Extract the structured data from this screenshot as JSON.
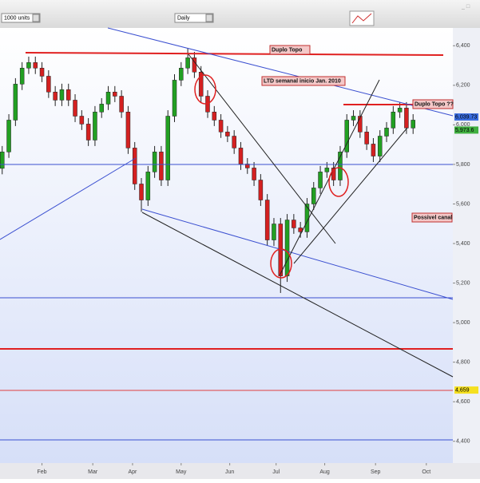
{
  "toolbar": {
    "units": "1000 units",
    "period": "Daily"
  },
  "chart_data": {
    "type": "candlestick",
    "x": [
      1,
      4,
      7,
      10,
      13,
      16,
      19,
      22,
      25,
      28,
      31,
      34,
      37,
      40,
      43,
      46,
      49,
      52,
      55,
      58,
      61,
      64,
      67,
      70,
      73,
      76,
      79,
      82,
      85,
      88,
      91,
      94,
      97,
      100,
      103,
      106,
      109,
      112,
      115,
      118,
      121,
      124,
      127,
      130,
      133,
      136,
      139,
      142,
      145,
      148,
      151,
      154,
      157,
      160,
      163,
      166,
      169,
      172,
      175,
      178,
      181,
      184,
      187
    ],
    "open": [
      5780,
      5863,
      6024,
      6206,
      6287,
      6315,
      6287,
      6246,
      6166,
      6125,
      6178,
      6125,
      6044,
      6004,
      5923,
      6065,
      6105,
      6166,
      6145,
      6065,
      5883,
      5701,
      5620,
      5762,
      5863,
      5721,
      6044,
      6226,
      6287,
      6339,
      6267,
      6145,
      6065,
      6024,
      5964,
      5943,
      5883,
      5802,
      5782,
      5721,
      5620,
      5418,
      5499,
      5236,
      5519,
      5479,
      5459,
      5600,
      5681,
      5762,
      5782,
      5721,
      5863,
      6024,
      6044,
      5964,
      5903,
      5842,
      5943,
      5984,
      6065,
      6085,
      5984
    ],
    "high": [
      5893,
      6054,
      6236,
      6317,
      6345,
      6345,
      6317,
      6276,
      6196,
      6208,
      6208,
      6155,
      6074,
      6034,
      6095,
      6135,
      6196,
      6196,
      6175,
      6095,
      5913,
      5731,
      5792,
      5893,
      5893,
      6074,
      6256,
      6317,
      6389,
      6369,
      6297,
      6175,
      6095,
      6054,
      5994,
      5973,
      5913,
      5832,
      5812,
      5751,
      5650,
      5529,
      5529,
      5549,
      5549,
      5509,
      5630,
      5711,
      5792,
      5812,
      5812,
      5893,
      6054,
      6074,
      6074,
      5994,
      5933,
      5973,
      6014,
      6095,
      6115,
      6115,
      6054
    ],
    "low": [
      5750,
      5833,
      5994,
      6176,
      6257,
      6257,
      6216,
      6136,
      6095,
      6095,
      6095,
      6014,
      5974,
      5893,
      5893,
      6035,
      6075,
      6115,
      6035,
      5853,
      5671,
      5560,
      5590,
      5732,
      5691,
      5691,
      6014,
      6196,
      6257,
      6237,
      6115,
      6035,
      5994,
      5934,
      5913,
      5853,
      5772,
      5752,
      5691,
      5590,
      5388,
      5388,
      5150,
      5206,
      5449,
      5429,
      5429,
      5570,
      5651,
      5732,
      5691,
      5691,
      5833,
      5994,
      5934,
      5873,
      5812,
      5812,
      5913,
      5954,
      6035,
      5954,
      5954
    ],
    "close": [
      5863,
      6024,
      6206,
      6287,
      6315,
      6287,
      6246,
      6166,
      6125,
      6178,
      6125,
      6044,
      6004,
      5923,
      6065,
      6105,
      6166,
      6145,
      6065,
      5883,
      5701,
      5620,
      5762,
      5863,
      5721,
      6044,
      6226,
      6287,
      6339,
      6267,
      6145,
      6065,
      6024,
      5964,
      5943,
      5883,
      5802,
      5782,
      5721,
      5620,
      5418,
      5499,
      5236,
      5519,
      5479,
      5459,
      5600,
      5681,
      5762,
      5782,
      5721,
      5863,
      6024,
      6044,
      5964,
      5903,
      5842,
      5943,
      5984,
      6065,
      6085,
      5984,
      6024
    ],
    "up_color": "#22a022",
    "down_color": "#d42020",
    "xlim": [
      0,
      205
    ],
    "xticks": [
      {
        "value": 19,
        "label": "Feb"
      },
      {
        "value": 42,
        "label": "Mar"
      },
      {
        "value": 60,
        "label": "Apr"
      },
      {
        "value": 82,
        "label": "May"
      },
      {
        "value": 104,
        "label": "Jun"
      },
      {
        "value": 125,
        "label": "Jul"
      },
      {
        "value": 147,
        "label": "Aug"
      },
      {
        "value": 170,
        "label": "Sep"
      },
      {
        "value": 193,
        "label": "Oct"
      }
    ],
    "ylim": [
      4290,
      6490
    ],
    "yticks": [
      {
        "value": 4400,
        "label": "4,400"
      },
      {
        "value": 4600,
        "label": "4,600"
      },
      {
        "value": 4800,
        "label": "4,800"
      },
      {
        "value": 5000,
        "label": "5,000"
      },
      {
        "value": 5200,
        "label": "5,200"
      },
      {
        "value": 5400,
        "label": "5,400"
      },
      {
        "value": 5600,
        "label": "5,600"
      },
      {
        "value": 5800,
        "label": "5,800"
      },
      {
        "value": 6000,
        "label": "6,000"
      },
      {
        "value": 6200,
        "label": "6,200"
      },
      {
        "value": 6400,
        "label": "6,400"
      }
    ],
    "annotations": [
      "Duplo Topo",
      "LTD semanal inicio Jan. 2010",
      "Duplo Topo ??",
      "Possivel canal"
    ],
    "price_labels": [
      {
        "value": 6039.73,
        "label": "6,039.73",
        "color": "#3a6de0"
      },
      {
        "value": 5973.6,
        "label": "5,973.6",
        "color": "#40b040"
      },
      {
        "value": 4659,
        "label": "4,659",
        "color": "#f5e020"
      }
    ]
  }
}
